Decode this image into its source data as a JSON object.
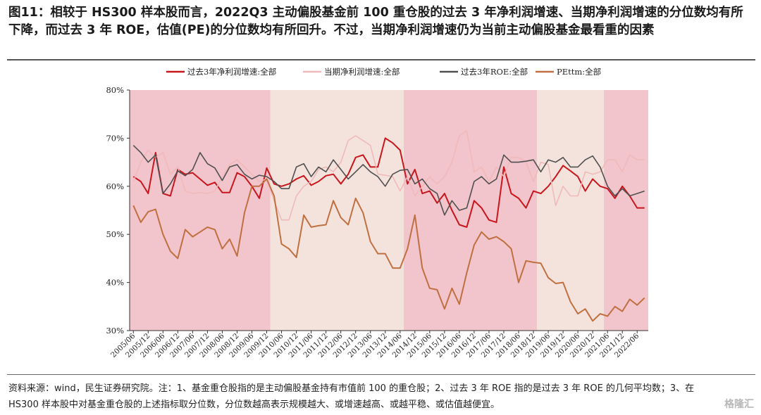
{
  "figure": {
    "title": "图11：相较于 HS300 样本股而言，2022Q3 主动偏股基金前 100 重仓股的过去 3 年净利润增速、当期净利润增速的分位数均有所下降，而过去 3 年 ROE，估值(PE)的分位数均有所回升。不过，当期净利润增速仍为当前主动偏股基金最看重的因素",
    "source": "资料来源：wind，民生证券研究院。注：1、基金重仓股指的是主动偏股基金持有市值前 100 的重仓股；2、过去 3 年 ROE 指的是过去 3 年 ROE 的几何平均数；3、在 HS300 样本股中对基金重仓股的上述指标取分位数，分位数越高表示规模越大、或增速越高、或越平稳、或估值越便宜。",
    "watermark": "格隆汇"
  },
  "chart_data": {
    "type": "line",
    "ylim": [
      30,
      80
    ],
    "y_ticks": [
      "30%",
      "40%",
      "50%",
      "60%",
      "70%",
      "80%"
    ],
    "x_tick_labels": [
      "2005/06",
      "2005/12",
      "2006/06",
      "2006/12",
      "2007/06",
      "2007/12",
      "2008/06",
      "2008/12",
      "2009/06",
      "2009/12",
      "2010/06",
      "2010/12",
      "2011/06",
      "2011/12",
      "2012/06",
      "2012/12",
      "2013/06",
      "2013/12",
      "2014/06",
      "2014/12",
      "2015/06",
      "2015/12",
      "2016/06",
      "2016/12",
      "2017/06",
      "2017/12",
      "2018/06",
      "2018/12",
      "2019/06",
      "2019/12",
      "2020/06",
      "2020/12",
      "2021/06",
      "2021/12",
      "2022/06"
    ],
    "x_start": "2005/06",
    "n_points": 70,
    "legend_position": "top",
    "shaded_regions": [
      {
        "from": 0,
        "to": 19,
        "color": "#f2c4cb"
      },
      {
        "from": 19,
        "to": 37,
        "color": "#f4e3dc"
      },
      {
        "from": 37,
        "to": 55,
        "color": "#f2c4cb"
      },
      {
        "from": 55,
        "to": 64,
        "color": "#f4e3dc"
      },
      {
        "from": 64,
        "to": 82,
        "color": "#f2c4cb"
      }
    ],
    "series": [
      {
        "name": "过去3年净利润增速:全部",
        "color": "#c8161d",
        "width": 2,
        "values": [
          62,
          61,
          58.5,
          67,
          58.5,
          58,
          63.5,
          62.5,
          62.8,
          61.5,
          60.2,
          60.8,
          58.7,
          58.7,
          62.8,
          62,
          60,
          57.5,
          63.8,
          60.5,
          60,
          60.5,
          61.5,
          62.2,
          60.2,
          61,
          62.2,
          62.5,
          60.5,
          62.5,
          66,
          66.5,
          64,
          64,
          70,
          69,
          67.5,
          60.5,
          63.5,
          58.5,
          59,
          56.5,
          58.5,
          55,
          52,
          51.5,
          57,
          55.5,
          53,
          52.5,
          64,
          58.5,
          57.5,
          55.5,
          59,
          58.5,
          60,
          62,
          64.3,
          63.2,
          62,
          59,
          61.5,
          60,
          59.5,
          57.5,
          60,
          58,
          55.5,
          55.5
        ]
      },
      {
        "name": "当期净利润增速:全部",
        "color": "#f0b9ba",
        "width": 1.6,
        "values": [
          61,
          65,
          67.5,
          66,
          67,
          62.5,
          64,
          59,
          58.5,
          58.7,
          58.5,
          59,
          62,
          64.5,
          65.5,
          64,
          62.5,
          61,
          61.5,
          57,
          53,
          53,
          58,
          60,
          61,
          63.5,
          64,
          63,
          65,
          69.5,
          70.5,
          69.5,
          68.5,
          62.5,
          62.3,
          62,
          59,
          62,
          58,
          60,
          62,
          60.5,
          62,
          65,
          70.5,
          71.5,
          63,
          64,
          61,
          64,
          62,
          66,
          66,
          65,
          61,
          65,
          64.5,
          56,
          60,
          58,
          58,
          63,
          62.5,
          63,
          65.5,
          65.5,
          63,
          66.5,
          65.5,
          65.5
        ]
      },
      {
        "name": "过去3年ROE:全部",
        "color": "#505050",
        "width": 1.6,
        "values": [
          68.5,
          67,
          65,
          66.5,
          58.5,
          60.5,
          63.2,
          62.2,
          63.5,
          67,
          64.7,
          63.8,
          61.2,
          64,
          64.5,
          62.5,
          61.5,
          62.3,
          62,
          61,
          59.5,
          59.5,
          64,
          64.7,
          62,
          64,
          63,
          65.5,
          63.5,
          61.5,
          63,
          64.5,
          63,
          62,
          60,
          62.5,
          63.3,
          63.5,
          60.5,
          61.5,
          59.5,
          58.5,
          54,
          57,
          55,
          55.5,
          61,
          62,
          60.5,
          61.5,
          66.5,
          65,
          65,
          65.2,
          65.5,
          63,
          65.5,
          65,
          66,
          64,
          64,
          65.5,
          66.3,
          64,
          60,
          58,
          59.5,
          58,
          58.5,
          59
        ]
      },
      {
        "name": "PEttm:全部",
        "color": "#c07040",
        "width": 2,
        "values": [
          56,
          52.5,
          54.7,
          55.2,
          50,
          46.5,
          45,
          51,
          49.5,
          50.5,
          51.5,
          51,
          47,
          49,
          45.5,
          54.5,
          60,
          60,
          61.5,
          58,
          48,
          47,
          45.2,
          54,
          51.5,
          51.8,
          52,
          57,
          53.5,
          52,
          57.5,
          54.5,
          48.5,
          46,
          46,
          43,
          43,
          47,
          54,
          43,
          38.8,
          38.5,
          34.5,
          38.8,
          35.5,
          42,
          47.8,
          50.5,
          49,
          49.5,
          48.5,
          47,
          40,
          44.5,
          44.2,
          44,
          41,
          39.8,
          40,
          36,
          33.5,
          34.5,
          32,
          33.5,
          33,
          35,
          34,
          36.5,
          35.3,
          36.8
        ]
      }
    ]
  }
}
